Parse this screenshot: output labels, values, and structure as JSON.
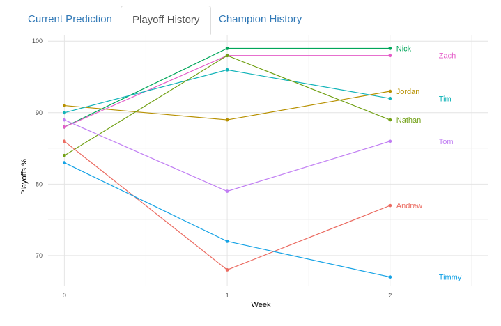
{
  "tabs": [
    {
      "label": "Current Prediction",
      "active": false
    },
    {
      "label": "Playoff History",
      "active": true
    },
    {
      "label": "Champion History",
      "active": false
    }
  ],
  "chart_data": {
    "type": "line",
    "xlabel": "Week",
    "ylabel": "Playoffs %",
    "x": [
      0,
      1,
      2
    ],
    "xticks": [
      "0",
      "1",
      "2"
    ],
    "yticks": [
      70,
      80,
      90,
      100
    ],
    "xlim": [
      -0.1,
      2.6
    ],
    "ylim": [
      65.8,
      100.9
    ],
    "grid": true,
    "series": [
      {
        "name": "Nick",
        "color": "#00A65A",
        "values": [
          88,
          99,
          99
        ]
      },
      {
        "name": "Zach",
        "color": "#E45BC8",
        "values": [
          88,
          98,
          98
        ]
      },
      {
        "name": "Jordan",
        "color": "#B79000",
        "values": [
          91,
          89,
          93
        ]
      },
      {
        "name": "Tim",
        "color": "#11B3B8",
        "values": [
          90,
          96,
          92
        ]
      },
      {
        "name": "Nathan",
        "color": "#72A116",
        "values": [
          84,
          98,
          89
        ]
      },
      {
        "name": "Tom",
        "color": "#C07DF3",
        "values": [
          89,
          79,
          86
        ]
      },
      {
        "name": "Andrew",
        "color": "#EB6B61",
        "values": [
          86,
          68,
          77
        ]
      },
      {
        "name": "Timmy",
        "color": "#14A2E5",
        "values": [
          83,
          72,
          67
        ]
      }
    ]
  }
}
